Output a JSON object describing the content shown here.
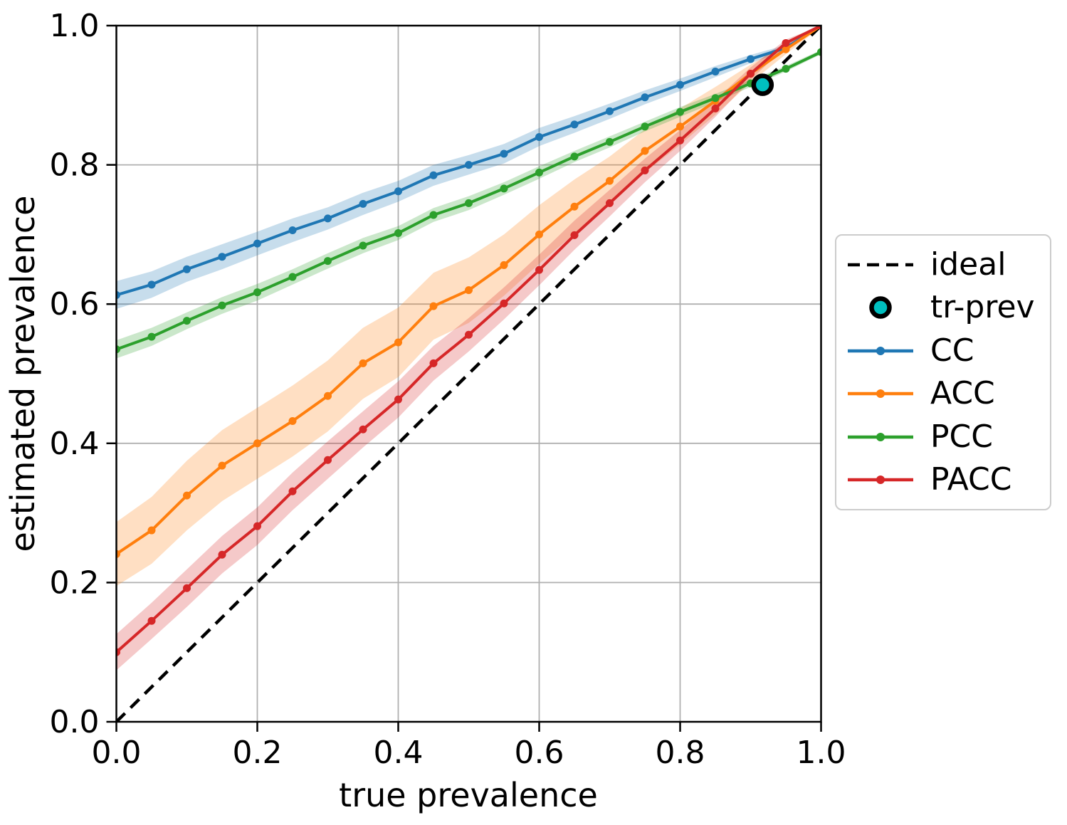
{
  "figure": {
    "background": "#ffffff",
    "grid_color": "#b0b0b0",
    "spine_color": "#000000",
    "legend_border_color": "#cccccc"
  },
  "chart_data": {
    "type": "line",
    "title": "",
    "xlabel": "true prevalence",
    "ylabel": "estimated prevalence",
    "xlim": [
      0.0,
      1.0
    ],
    "ylim": [
      0.0,
      1.0
    ],
    "grid": true,
    "legend_position": "outside center right",
    "xticks": [
      {
        "value": 0.0,
        "label": "0.0"
      },
      {
        "value": 0.2,
        "label": "0.2"
      },
      {
        "value": 0.4,
        "label": "0.4"
      },
      {
        "value": 0.6,
        "label": "0.6"
      },
      {
        "value": 0.8,
        "label": "0.8"
      },
      {
        "value": 1.0,
        "label": "1.0"
      }
    ],
    "yticks": [
      {
        "value": 0.0,
        "label": "0.0"
      },
      {
        "value": 0.2,
        "label": "0.2"
      },
      {
        "value": 0.4,
        "label": "0.4"
      },
      {
        "value": 0.6,
        "label": "0.6"
      },
      {
        "value": 0.8,
        "label": "0.8"
      },
      {
        "value": 1.0,
        "label": "1.0"
      }
    ],
    "x": [
      0.0,
      0.05,
      0.1,
      0.15,
      0.2,
      0.25,
      0.3,
      0.35,
      0.4,
      0.45,
      0.5,
      0.55,
      0.6,
      0.65,
      0.7,
      0.75,
      0.8,
      0.85,
      0.9,
      0.95,
      1.0
    ],
    "series": [
      {
        "name": "CC",
        "color": "#1f77b4",
        "values": [
          0.613,
          0.628,
          0.65,
          0.668,
          0.687,
          0.706,
          0.723,
          0.744,
          0.762,
          0.785,
          0.8,
          0.816,
          0.84,
          0.858,
          0.877,
          0.897,
          0.915,
          0.934,
          0.952,
          0.968,
          1.0
        ],
        "band": [
          0.02,
          0.019,
          0.018,
          0.018,
          0.017,
          0.017,
          0.016,
          0.016,
          0.015,
          0.015,
          0.014,
          0.014,
          0.013,
          0.012,
          0.011,
          0.01,
          0.009,
          0.008,
          0.006,
          0.004,
          0.001
        ]
      },
      {
        "name": "ACC",
        "color": "#ff7f0e",
        "values": [
          0.241,
          0.275,
          0.325,
          0.368,
          0.4,
          0.432,
          0.468,
          0.515,
          0.545,
          0.597,
          0.62,
          0.656,
          0.7,
          0.74,
          0.777,
          0.82,
          0.855,
          0.892,
          0.931,
          0.966,
          1.0
        ],
        "band": [
          0.046,
          0.048,
          0.05,
          0.051,
          0.051,
          0.051,
          0.051,
          0.051,
          0.05,
          0.048,
          0.047,
          0.044,
          0.042,
          0.039,
          0.035,
          0.031,
          0.026,
          0.02,
          0.013,
          0.007,
          0.002
        ]
      },
      {
        "name": "PCC",
        "color": "#2ca02c",
        "values": [
          0.535,
          0.553,
          0.576,
          0.598,
          0.617,
          0.639,
          0.662,
          0.684,
          0.702,
          0.728,
          0.745,
          0.766,
          0.789,
          0.812,
          0.833,
          0.855,
          0.876,
          0.896,
          0.917,
          0.938,
          0.962
        ],
        "band": [
          0.013,
          0.013,
          0.012,
          0.012,
          0.012,
          0.011,
          0.011,
          0.011,
          0.01,
          0.01,
          0.01,
          0.009,
          0.009,
          0.008,
          0.008,
          0.007,
          0.007,
          0.006,
          0.005,
          0.004,
          0.003
        ]
      },
      {
        "name": "PACC",
        "color": "#d62728",
        "values": [
          0.1,
          0.145,
          0.192,
          0.24,
          0.281,
          0.331,
          0.376,
          0.42,
          0.463,
          0.515,
          0.556,
          0.601,
          0.649,
          0.699,
          0.745,
          0.792,
          0.835,
          0.881,
          0.931,
          0.975,
          1.0
        ],
        "band": [
          0.026,
          0.026,
          0.027,
          0.027,
          0.027,
          0.027,
          0.027,
          0.026,
          0.026,
          0.025,
          0.024,
          0.023,
          0.022,
          0.021,
          0.019,
          0.017,
          0.015,
          0.012,
          0.009,
          0.005,
          0.002
        ]
      }
    ],
    "reference_line": {
      "name": "ideal",
      "style": "dashed",
      "color": "#000000",
      "from": [
        0.0,
        0.0
      ],
      "to": [
        1.0,
        1.0
      ]
    },
    "point_marker": {
      "name": "tr-prev",
      "x": 0.917,
      "y": 0.915,
      "fill": "#00bfbf",
      "edge": "#000000"
    },
    "legend": {
      "entries": [
        {
          "label": "ideal",
          "type": "dashed",
          "color": "#000000"
        },
        {
          "label": "tr-prev",
          "type": "circle",
          "color": "#00bfbf"
        },
        {
          "label": "CC",
          "type": "line",
          "color": "#1f77b4"
        },
        {
          "label": "ACC",
          "type": "line",
          "color": "#ff7f0e"
        },
        {
          "label": "PCC",
          "type": "line",
          "color": "#2ca02c"
        },
        {
          "label": "PACC",
          "type": "line",
          "color": "#d62728"
        }
      ]
    }
  }
}
